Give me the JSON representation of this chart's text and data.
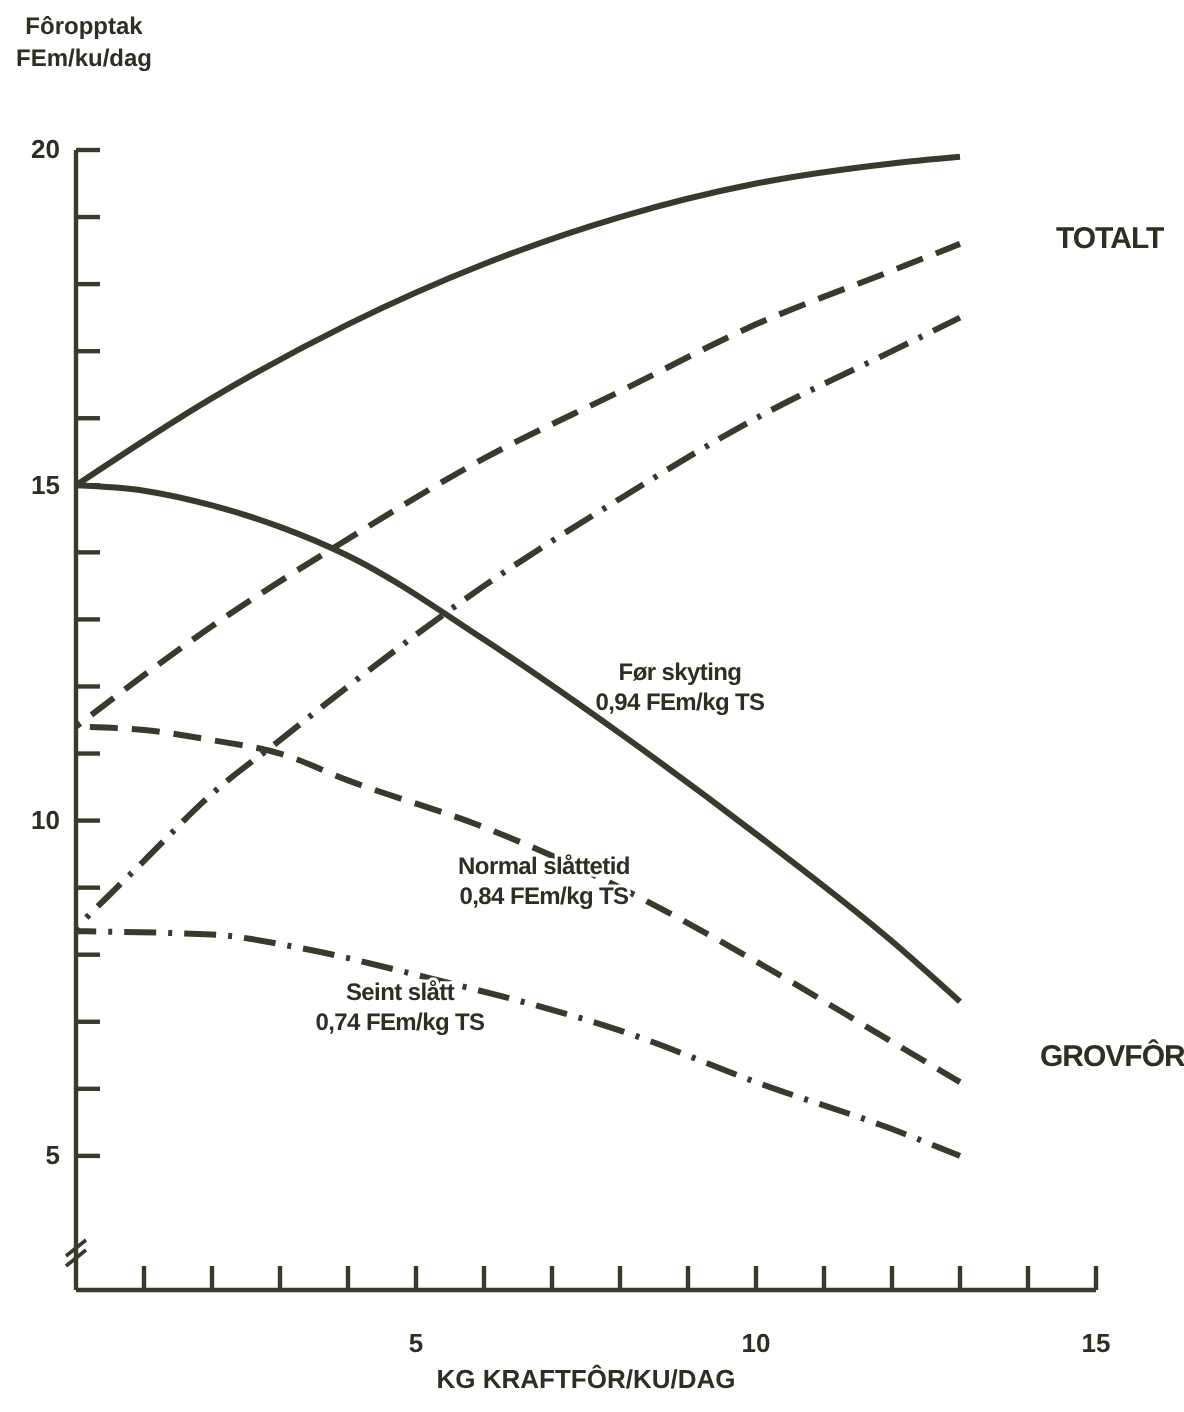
{
  "chart_data": {
    "type": "line",
    "ylabel": "Fôropptak\nFEm/ku/dag",
    "xlabel": "KG KRAFTFÔR/KU/DAG",
    "xlim": [
      0,
      15
    ],
    "ylim": [
      3,
      20
    ],
    "xticks": [
      {
        "value": 1,
        "label": null
      },
      {
        "value": 2,
        "label": null
      },
      {
        "value": 3,
        "label": null
      },
      {
        "value": 4,
        "label": null
      },
      5,
      {
        "value": 6,
        "label": null
      },
      {
        "value": 7,
        "label": null
      },
      {
        "value": 8,
        "label": null
      },
      {
        "value": 9,
        "label": null
      },
      10,
      {
        "value": 11,
        "label": null
      },
      {
        "value": 12,
        "label": null
      },
      {
        "value": 13,
        "label": null
      },
      {
        "value": 14,
        "label": null
      },
      15
    ],
    "yticks": [
      5,
      {
        "value": 6,
        "label": null
      },
      {
        "value": 7,
        "label": null
      },
      {
        "value": 8,
        "label": null
      },
      {
        "value": 9,
        "label": null
      },
      10,
      {
        "value": 11,
        "label": null
      },
      {
        "value": 12,
        "label": null
      },
      {
        "value": 13,
        "label": null
      },
      {
        "value": 14,
        "label": null
      },
      15,
      {
        "value": 16,
        "label": null
      },
      {
        "value": 17,
        "label": null
      },
      {
        "value": 18,
        "label": null
      },
      {
        "value": 19,
        "label": null
      },
      20
    ],
    "grid": false,
    "marker": "none",
    "series": [
      {
        "color": "#3a3a2c",
        "line_style": "solid",
        "x": [
          0,
          2,
          4,
          6,
          8,
          10,
          12,
          13
        ],
        "values": [
          15,
          16.3,
          17.4,
          18.3,
          19.0,
          19.5,
          19.8,
          19.9
        ]
      },
      {
        "color": "#3a3a2c",
        "line_style": "dashed",
        "x": [
          0,
          2,
          4,
          6,
          8,
          10,
          12,
          13
        ],
        "values": [
          11.4,
          12.9,
          14.2,
          15.4,
          16.4,
          17.4,
          18.2,
          18.6
        ]
      },
      {
        "color": "#3a3a2c",
        "line_style": "dashdot",
        "x": [
          0,
          1,
          2,
          3,
          4,
          6,
          8,
          10,
          12,
          13
        ],
        "values": [
          8.4,
          9.4,
          10.4,
          11.2,
          12.0,
          13.5,
          14.8,
          16.0,
          17.0,
          17.5
        ]
      },
      {
        "color": "#3a3a2c",
        "line_style": "solid",
        "x": [
          0,
          1,
          2,
          3,
          4,
          6,
          8,
          10,
          12,
          13
        ],
        "values": [
          15,
          14.92,
          14.7,
          14.38,
          13.95,
          12.7,
          11.3,
          9.8,
          8.2,
          7.3
        ]
      },
      {
        "color": "#3a3a2c",
        "line_style": "dashed",
        "x": [
          0,
          1,
          2,
          3,
          4,
          6,
          8,
          10,
          12,
          13
        ],
        "values": [
          11.4,
          11.35,
          11.2,
          11.0,
          10.6,
          9.9,
          9.0,
          7.9,
          6.7,
          6.1
        ]
      },
      {
        "color": "#3a3a2c",
        "line_style": "dashdot",
        "x": [
          0,
          2,
          3.3,
          5,
          8.2,
          10,
          12,
          13
        ],
        "values": [
          8.35,
          8.3,
          8.1,
          7.7,
          6.8,
          6.1,
          5.4,
          5.0
        ]
      }
    ],
    "annotations": [
      "TOTALT",
      "GROVFÔR",
      "Før skyting\n0,94 FEm/kg TS",
      "Normal slåttetid\n0,84 FEm/kg TS",
      "Seint slått\n0,74 FEm/kg TS"
    ]
  }
}
